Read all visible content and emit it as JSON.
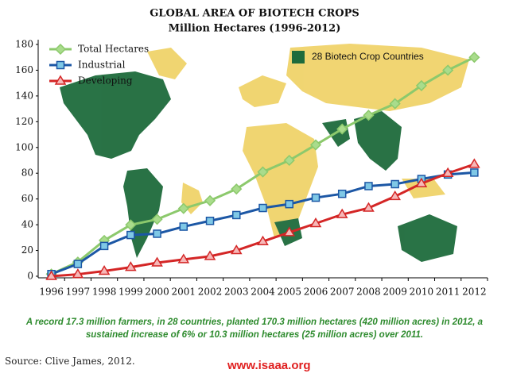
{
  "chart_data": {
    "type": "line",
    "title": "GLOBAL AREA OF BIOTECH CROPS",
    "subtitle": "Million Hectares (1996-2012)",
    "categories": [
      "1996",
      "1997",
      "1998",
      "1999",
      "2000",
      "2001",
      "2002",
      "2003",
      "2004",
      "2005",
      "2006",
      "2007",
      "2008",
      "2009",
      "2010",
      "2011",
      "2012"
    ],
    "series": [
      {
        "name": "Total Hectares",
        "color": "#8cc96c",
        "marker": "diamond",
        "marker_fill": "#a9dc8c",
        "values": [
          1.7,
          11,
          27.8,
          39.9,
          44.2,
          52.6,
          58.7,
          67.7,
          81,
          90,
          102,
          114.3,
          125,
          134,
          148,
          160,
          170
        ]
      },
      {
        "name": "Industrial",
        "color": "#1c57a5",
        "marker": "square",
        "marker_fill": "#7fc8e6",
        "values": [
          1.7,
          9.5,
          23.5,
          32,
          33,
          38.5,
          43,
          47.5,
          53,
          56,
          61,
          64,
          70,
          71.5,
          75.5,
          79,
          80.5
        ]
      },
      {
        "name": "Developing",
        "color": "#d42626",
        "marker": "triangle",
        "marker_fill": "#f6b8b8",
        "values": [
          0,
          1.5,
          4,
          7,
          10.5,
          13,
          15.5,
          20,
          27,
          34,
          41,
          48,
          53,
          62,
          72,
          80,
          87
        ]
      }
    ],
    "ylim": [
      0,
      180
    ],
    "yticks": [
      0,
      20,
      40,
      60,
      80,
      100,
      120,
      140,
      160,
      180
    ],
    "grid": false,
    "legend": "top-left",
    "map_legend": {
      "label": "28 Biotech Crop Countries",
      "color": "#1e6b3c"
    },
    "caption": "A record 17.3 million farmers, in 28 countries, planted 170.3 million hectares (420 million acres) in 2012, a sustained increase of 6% or 10.3 million hectares (25 million acres) over 2011.",
    "source": "Source: Clive James, 2012.",
    "website": "www.isaaa.org"
  }
}
